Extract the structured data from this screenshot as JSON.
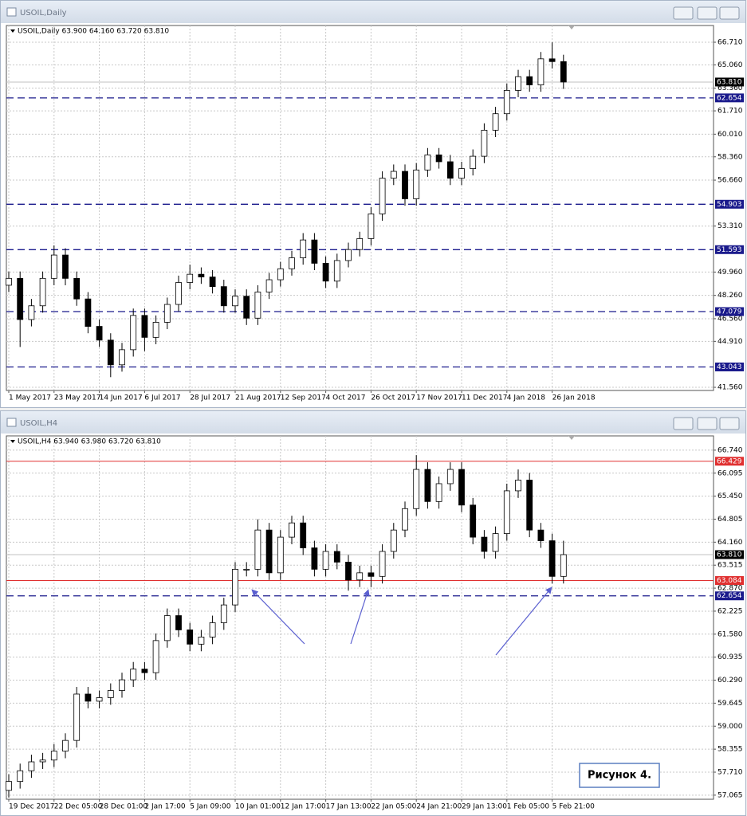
{
  "chart_data": [
    {
      "type": "candlestick",
      "window_title": "USOIL,Daily",
      "title": "USOIL,Daily  63.900 64.160 63.720 63.810",
      "categories": [
        "1 May 2017",
        null,
        null,
        null,
        "23 May 2017",
        null,
        null,
        null,
        "14 Jun 2017",
        null,
        null,
        null,
        "6 Jul 2017",
        null,
        null,
        null,
        "28 Jul 2017",
        null,
        null,
        null,
        "21 Aug 2017",
        null,
        null,
        null,
        "12 Sep 2017",
        null,
        null,
        null,
        "4 Oct 2017",
        null,
        null,
        null,
        "26 Oct 2017",
        null,
        null,
        null,
        "17 Nov 2017",
        null,
        null,
        null,
        "11 Dec 2017",
        null,
        null,
        null,
        "4 Jan 2018",
        null,
        null,
        null,
        "26 Jan 2018",
        null
      ],
      "open": [
        49.0,
        49.5,
        46.5,
        47.5,
        49.5,
        51.2,
        49.5,
        48.0,
        46.0,
        45.0,
        43.2,
        44.3,
        46.8,
        45.2,
        46.3,
        47.6,
        49.2,
        49.8,
        49.6,
        48.9,
        47.5,
        48.2,
        46.6,
        48.5,
        49.4,
        50.2,
        51.0,
        52.3,
        50.6,
        49.3,
        50.8,
        51.6,
        52.4,
        54.2,
        56.8,
        57.3,
        55.3,
        57.4,
        58.5,
        58.0,
        56.8,
        57.5,
        58.4,
        60.3,
        61.5,
        63.2,
        64.2,
        63.6,
        65.5,
        65.3
      ],
      "high": [
        50.0,
        50.0,
        48.0,
        50.0,
        51.9,
        51.7,
        50.0,
        48.5,
        46.5,
        45.5,
        44.8,
        47.3,
        47.3,
        46.8,
        48.1,
        49.7,
        50.5,
        50.3,
        50.1,
        49.4,
        48.7,
        48.7,
        49.0,
        49.9,
        50.7,
        51.5,
        52.8,
        52.8,
        51.1,
        51.3,
        52.1,
        52.9,
        54.7,
        57.3,
        57.8,
        57.8,
        57.9,
        59.0,
        59.0,
        58.5,
        58.0,
        58.9,
        60.8,
        62.0,
        63.7,
        64.7,
        64.7,
        66.0,
        66.7,
        65.8
      ],
      "low": [
        48.5,
        44.5,
        46.0,
        47.0,
        49.0,
        49.0,
        47.5,
        45.5,
        44.5,
        42.3,
        42.7,
        43.8,
        44.2,
        44.7,
        45.8,
        47.1,
        48.7,
        49.1,
        48.4,
        47.0,
        47.0,
        46.1,
        46.1,
        48.0,
        48.9,
        49.7,
        50.5,
        50.1,
        48.8,
        48.8,
        50.3,
        51.1,
        51.9,
        53.7,
        56.3,
        54.8,
        54.8,
        56.9,
        57.5,
        56.3,
        56.3,
        57.0,
        57.9,
        59.8,
        61.0,
        62.7,
        63.1,
        63.1,
        64.8,
        63.31
      ],
      "close": [
        49.5,
        46.5,
        47.5,
        49.5,
        51.2,
        49.5,
        48.0,
        46.0,
        45.0,
        43.2,
        44.3,
        46.8,
        45.2,
        46.3,
        47.6,
        49.2,
        49.8,
        49.6,
        48.9,
        47.5,
        48.2,
        46.6,
        48.5,
        49.4,
        50.2,
        51.0,
        52.3,
        50.6,
        49.3,
        50.8,
        51.6,
        52.4,
        54.2,
        56.8,
        57.3,
        55.3,
        57.4,
        58.5,
        58.0,
        56.8,
        57.5,
        58.4,
        60.3,
        61.5,
        63.2,
        64.2,
        63.6,
        65.5,
        65.3,
        63.81
      ],
      "ylim": [
        41.33,
        67.93
      ],
      "yticks": [
        {
          "value": 66.71,
          "label": "66.710"
        },
        {
          "value": 65.06,
          "label": "65.060"
        },
        {
          "value": 63.36,
          "label": "63.360"
        },
        {
          "value": 61.71,
          "label": "61.710"
        },
        {
          "value": 60.01,
          "label": "60.010"
        },
        {
          "value": 58.36,
          "label": "58.360"
        },
        {
          "value": 56.66,
          "label": "56.660"
        },
        {
          "value": 53.31,
          "label": "53.310"
        },
        {
          "value": 49.96,
          "label": "49.960"
        },
        {
          "value": 48.26,
          "label": "48.260"
        },
        {
          "value": 46.56,
          "label": "46.560"
        },
        {
          "value": 44.91,
          "label": "44.910"
        },
        {
          "value": 41.56,
          "label": "41.560"
        }
      ],
      "levels": [
        {
          "value": 63.81,
          "label": "63.810",
          "color": "#c0c0c0",
          "label_color": "#000000",
          "style": "solid"
        },
        {
          "value": 62.654,
          "color": "#1a1a8c",
          "label_color": "#1a1a8c",
          "style": "dashed"
        },
        {
          "value": 54.903,
          "color": "#1a1a8c",
          "label_color": "#1a1a8c",
          "style": "dashed"
        },
        {
          "value": 51.593,
          "color": "#1a1a8c",
          "label_color": "#1a1a8c",
          "style": "dashed"
        },
        {
          "value": 47.079,
          "color": "#1a1a8c",
          "label_color": "#1a1a8c",
          "style": "dashed"
        },
        {
          "value": 43.043,
          "color": "#1a1a8c",
          "label_color": "#1a1a8c",
          "style": "dashed"
        }
      ],
      "grid": true,
      "up_color": "#ffffff",
      "down_color": "#000000",
      "wick_color": "#000000"
    },
    {
      "type": "candlestick",
      "window_title": "USOIL,H4",
      "title": "USOIL,H4  63.940 63.980 63.720 63.810",
      "categories": [
        "19 Dec 2017",
        null,
        null,
        null,
        "22 Dec 05:00",
        null,
        null,
        null,
        "28 Dec 01:00",
        null,
        null,
        null,
        "2 Jan 17:00",
        null,
        null,
        null,
        "5 Jan 09:00",
        null,
        null,
        null,
        "10 Jan 01:00",
        null,
        null,
        null,
        "12 Jan 17:00",
        null,
        null,
        null,
        "17 Jan 13:00",
        null,
        null,
        null,
        "22 Jan 05:00",
        null,
        null,
        null,
        "24 Jan 21:00",
        null,
        null,
        null,
        "29 Jan 13:00",
        null,
        null,
        null,
        "1 Feb 05:00",
        null,
        null,
        null,
        "5 Feb 21:00",
        null
      ],
      "open": [
        57.2,
        57.45,
        57.75,
        58.0,
        58.05,
        58.3,
        58.6,
        59.9,
        59.7,
        59.8,
        60.0,
        60.3,
        60.6,
        60.5,
        61.4,
        62.1,
        61.7,
        61.3,
        61.5,
        61.9,
        62.4,
        63.4,
        63.4,
        64.5,
        63.3,
        64.3,
        64.7,
        64.0,
        63.4,
        63.9,
        63.6,
        63.1,
        63.3,
        63.2,
        63.9,
        64.5,
        65.1,
        66.2,
        65.3,
        65.8,
        66.2,
        65.2,
        64.3,
        63.9,
        64.4,
        65.6,
        65.9,
        64.5,
        64.2,
        63.2
      ],
      "high": [
        57.65,
        57.95,
        58.2,
        58.25,
        58.5,
        58.8,
        60.1,
        60.1,
        60.0,
        60.2,
        60.5,
        60.8,
        60.8,
        61.6,
        62.3,
        62.3,
        61.9,
        61.7,
        62.1,
        62.6,
        63.6,
        63.6,
        64.8,
        64.7,
        64.5,
        64.9,
        64.9,
        64.2,
        64.1,
        64.1,
        63.8,
        63.5,
        63.5,
        64.1,
        64.7,
        65.3,
        66.6,
        66.4,
        66.0,
        66.4,
        66.4,
        65.4,
        64.5,
        64.6,
        65.8,
        66.2,
        66.1,
        64.7,
        64.4,
        64.2
      ],
      "low": [
        57.0,
        57.25,
        57.55,
        57.8,
        57.85,
        58.1,
        58.4,
        59.5,
        59.5,
        59.6,
        59.8,
        60.1,
        60.3,
        60.3,
        61.2,
        61.5,
        61.1,
        61.1,
        61.3,
        61.7,
        62.2,
        63.2,
        63.2,
        63.1,
        63.1,
        64.1,
        63.8,
        63.2,
        63.2,
        63.4,
        62.8,
        62.9,
        62.9,
        63.0,
        63.7,
        64.3,
        64.9,
        65.1,
        65.1,
        65.6,
        65.0,
        64.1,
        63.7,
        63.7,
        64.2,
        65.4,
        64.3,
        64.0,
        63.0,
        63.0
      ],
      "close": [
        57.45,
        57.75,
        58.0,
        58.05,
        58.3,
        58.6,
        59.9,
        59.7,
        59.8,
        60.0,
        60.3,
        60.6,
        60.5,
        61.4,
        62.1,
        61.7,
        61.3,
        61.5,
        61.9,
        62.4,
        63.4,
        63.4,
        64.5,
        63.3,
        64.3,
        64.7,
        64.0,
        63.4,
        63.9,
        63.6,
        63.1,
        63.3,
        63.2,
        63.9,
        64.5,
        65.1,
        66.2,
        65.3,
        65.8,
        66.2,
        65.2,
        64.3,
        63.9,
        64.4,
        65.6,
        65.9,
        64.5,
        64.2,
        63.2,
        63.81
      ],
      "ylim": [
        56.95,
        67.14
      ],
      "yticks": [
        {
          "value": 66.74,
          "label": "66.740"
        },
        66.095,
        {
          "value": 65.45,
          "label": "65.450"
        },
        64.805,
        {
          "value": 64.16,
          "label": "64.160"
        },
        63.515,
        {
          "value": 62.87,
          "label": "62.870"
        },
        62.225,
        {
          "value": 61.58,
          "label": "61.580"
        },
        60.935,
        {
          "value": 60.29,
          "label": "60.290"
        },
        59.645,
        {
          "value": 59,
          "label": "59.000"
        },
        58.355,
        {
          "value": 57.71,
          "label": "57.710"
        },
        57.065
      ],
      "levels": [
        {
          "value": 66.429,
          "color": "#e03030",
          "label_color": "#e03030",
          "style": "solid"
        },
        {
          "value": 63.81,
          "label": "63.810",
          "color": "#c0c0c0",
          "label_color": "#000000",
          "style": "solid"
        },
        {
          "value": 63.084,
          "color": "#e03030",
          "label_color": "#e03030",
          "style": "solid"
        },
        {
          "value": 62.654,
          "color": "#1a1a8c",
          "label_color": "#1a1a8c",
          "style": "dashed"
        }
      ],
      "grid": true,
      "up_color": "#ffffff",
      "down_color": "#000000",
      "wick_color": "#000000",
      "annotation": "Рисунок 4."
    }
  ]
}
